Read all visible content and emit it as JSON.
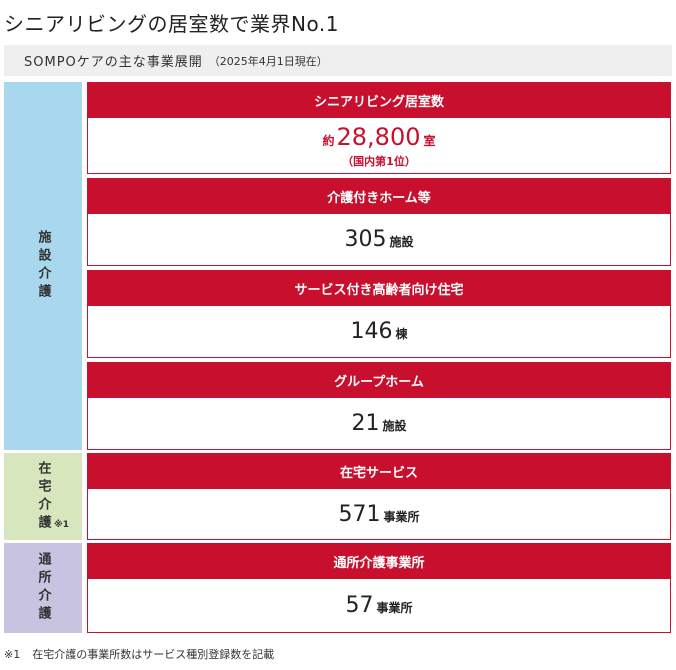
{
  "title": "シニアリビングの居室数で業界No.1",
  "subhead": {
    "main": "SOMPOケアの主な事業展開",
    "date": "（2025年4月1日現在）"
  },
  "categories": [
    {
      "label": "施設介護",
      "note": ""
    },
    {
      "label": "在宅介護",
      "note": "※1"
    },
    {
      "label": "通所介護",
      "note": ""
    }
  ],
  "cards": [
    {
      "title": "シニアリビング居室数",
      "prefix": "約",
      "value": "28,800",
      "unit": "室",
      "sub": "（国内第1位）"
    },
    {
      "title": "介護付きホーム等",
      "value": "305",
      "unit": "施設"
    },
    {
      "title": "サービス付き高齢者向け住宅",
      "value": "146",
      "unit": "棟"
    },
    {
      "title": "グループホーム",
      "value": "21",
      "unit": "施設"
    },
    {
      "title": "在宅サービス",
      "value": "571",
      "unit": "事業所"
    },
    {
      "title": "通所介護事業所",
      "value": "57",
      "unit": "事業所"
    }
  ],
  "footnote": {
    "mark": "※1",
    "text": "在宅介護の事業所数はサービス種別登録数を記載"
  },
  "colors": {
    "accent": "#c8102e",
    "facility": "#a9d7ee",
    "home": "#d7e6bd",
    "day": "#c7c3e0"
  }
}
